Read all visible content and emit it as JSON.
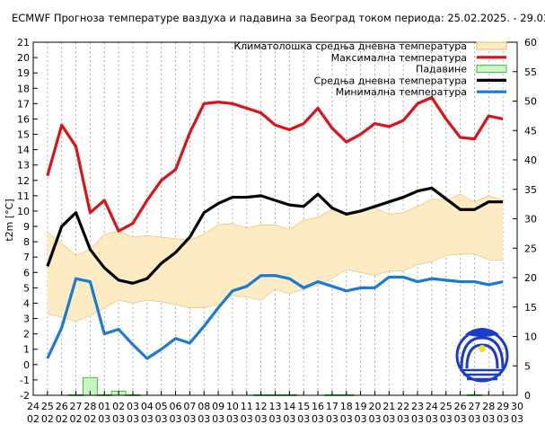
{
  "chart_data": {
    "type": "line",
    "title": "ECMWF Прогноза температуре ваздуха и падавина за Београд током периода: 25.02.2025. - 29.03.2025.",
    "ylabel": "t2m [°C]",
    "ylim": [
      -2,
      21
    ],
    "y2lim": [
      0,
      60
    ],
    "yticks": [
      -2,
      -1,
      0,
      1,
      2,
      3,
      4,
      5,
      6,
      7,
      8,
      9,
      10,
      11,
      12,
      13,
      14,
      15,
      16,
      17,
      18,
      19,
      20,
      21
    ],
    "y2ticks": [
      0,
      5,
      10,
      15,
      20,
      25,
      30,
      35,
      40,
      45,
      50,
      55,
      60
    ],
    "xtick_days": [
      "24",
      "25",
      "26",
      "27",
      "28",
      "01",
      "02",
      "03",
      "04",
      "05",
      "06",
      "07",
      "08",
      "09",
      "10",
      "11",
      "12",
      "13",
      "14",
      "15",
      "16",
      "17",
      "18",
      "19",
      "20",
      "21",
      "22",
      "23",
      "24",
      "25",
      "26",
      "27",
      "28",
      "29",
      "30"
    ],
    "xtick_months": [
      "02",
      "02",
      "02",
      "02",
      "02",
      "03",
      "03",
      "03",
      "03",
      "03",
      "03",
      "03",
      "03",
      "03",
      "03",
      "03",
      "03",
      "03",
      "03",
      "03",
      "03",
      "03",
      "03",
      "03",
      "03",
      "03",
      "03",
      "03",
      "03",
      "03",
      "03",
      "03",
      "03",
      "03",
      "03"
    ],
    "grid": true,
    "legend_position": "top-right",
    "x_start_index": 1,
    "series": [
      {
        "name": "Климатолошка средња дневна температура",
        "kind": "band",
        "color": "#fdebc4",
        "edge": "#e8b868",
        "lower": [
          3.3,
          3.1,
          2.8,
          3.2,
          3.7,
          4.2,
          4.0,
          4.2,
          4.1,
          3.9,
          3.7,
          3.7,
          3.9,
          4.5,
          4.4,
          4.2,
          4.9,
          4.6,
          4.9,
          5.2,
          5.6,
          6.2,
          6.0,
          5.8,
          6.1,
          6.1,
          6.5,
          6.7,
          7.1,
          7.2,
          7.2,
          6.8,
          6.8
        ],
        "upper": [
          8.6,
          7.9,
          7.1,
          7.5,
          8.5,
          8.7,
          8.3,
          8.4,
          8.3,
          8.2,
          8.1,
          8.5,
          9.1,
          9.2,
          8.9,
          9.1,
          9.1,
          8.8,
          9.4,
          9.6,
          10.1,
          9.8,
          10.1,
          10.2,
          9.8,
          9.9,
          10.3,
          10.8,
          10.7,
          11.1,
          10.6,
          11.0,
          10.7
        ]
      },
      {
        "name": "Максимална температура",
        "kind": "line",
        "color": "#d81418",
        "values": [
          12.3,
          15.6,
          14.2,
          9.9,
          10.7,
          8.7,
          9.2,
          10.7,
          12.0,
          12.7,
          15.1,
          17.0,
          17.1,
          17.0,
          16.7,
          16.4,
          15.6,
          15.3,
          15.7,
          16.7,
          15.4,
          14.5,
          15.0,
          15.7,
          15.5,
          15.9,
          17.0,
          17.4,
          16.0,
          14.8,
          14.7,
          16.2,
          16.0
        ]
      },
      {
        "name": "Падавине",
        "kind": "bar",
        "axis": "y2",
        "color": "#c8f5c0",
        "edge": "#3cc03c",
        "values": [
          0,
          0,
          0.1,
          3.0,
          0.1,
          0.7,
          0.1,
          0,
          0,
          0,
          0,
          0,
          0,
          0,
          0,
          0.1,
          0.1,
          0.1,
          0,
          0,
          0.1,
          0.1,
          0,
          0,
          0,
          0,
          0,
          0,
          0,
          0,
          0.1,
          0,
          0
        ]
      },
      {
        "name": "Средња дневна температура",
        "kind": "line",
        "color": "#000000",
        "values": [
          6.4,
          9.0,
          9.9,
          7.5,
          6.3,
          5.5,
          5.3,
          5.6,
          6.6,
          7.3,
          8.3,
          9.9,
          10.5,
          10.9,
          10.9,
          11.0,
          10.7,
          10.4,
          10.3,
          11.1,
          10.2,
          9.8,
          10.0,
          10.3,
          10.6,
          10.9,
          11.3,
          11.5,
          10.8,
          10.1,
          10.1,
          10.6,
          10.6
        ]
      },
      {
        "name": "Минимална температура",
        "kind": "line",
        "color": "#1a7ad4",
        "values": [
          0.4,
          2.4,
          5.6,
          5.4,
          2.0,
          2.3,
          1.3,
          0.4,
          1.0,
          1.7,
          1.4,
          2.5,
          3.7,
          4.8,
          5.1,
          5.8,
          5.8,
          5.6,
          5.0,
          5.4,
          5.1,
          4.8,
          5.0,
          5.0,
          5.7,
          5.7,
          5.4,
          5.6,
          5.5,
          5.4,
          5.4,
          5.2,
          5.4
        ]
      }
    ]
  },
  "logo": {
    "text": "РХМЗ СРБИЈЕ",
    "color": "#1a3cc8"
  }
}
